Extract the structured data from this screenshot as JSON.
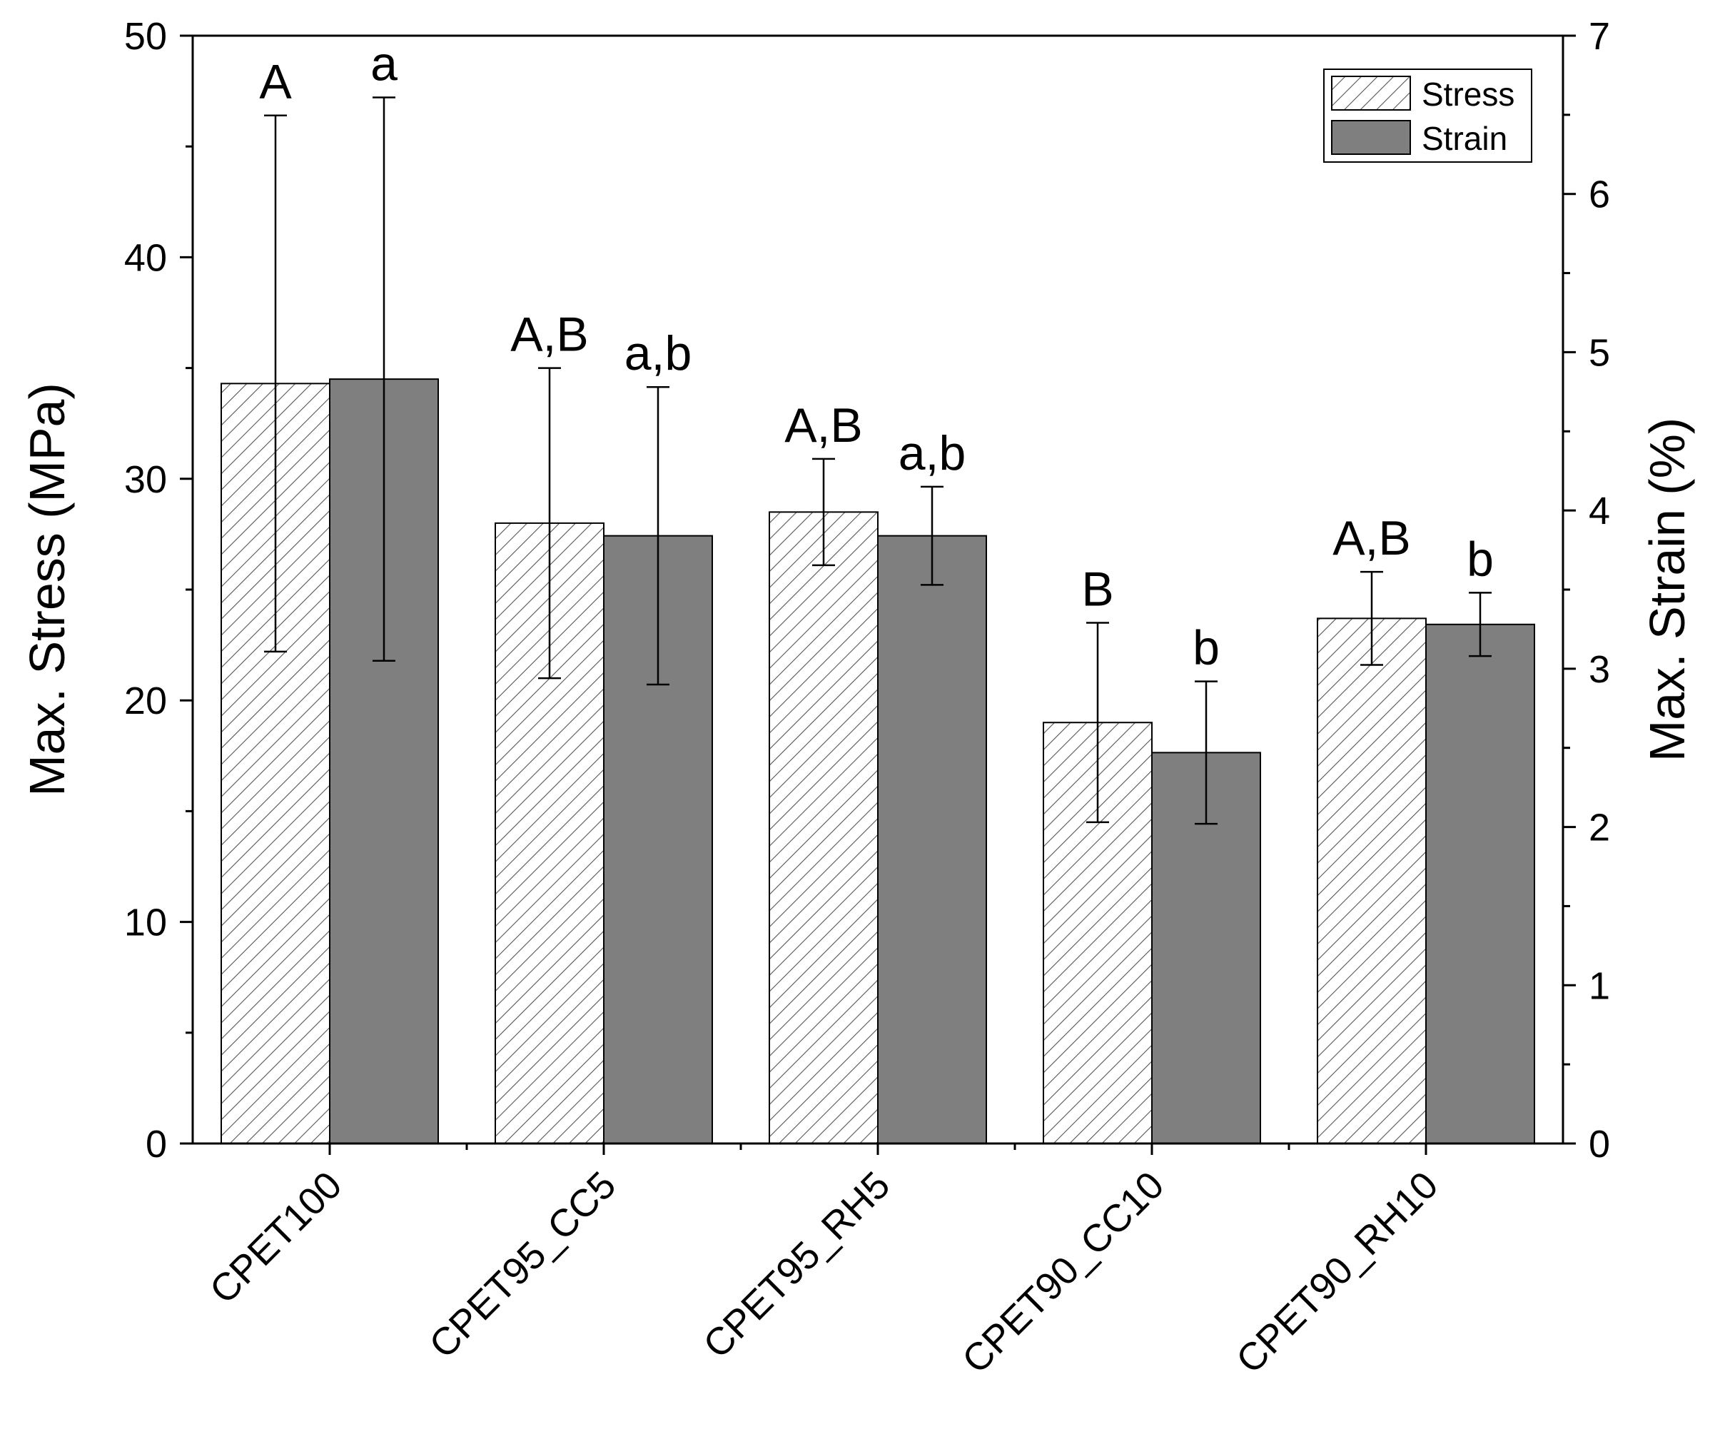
{
  "chart_data": {
    "type": "bar",
    "categories": [
      "CPET100",
      "CPET95_CC5",
      "CPET95_RH5",
      "CPET90_CC10",
      "CPET90_RH10"
    ],
    "series": [
      {
        "name": "Stress",
        "axis": "left",
        "pattern": "hatched",
        "color": "#ffffff",
        "values": [
          34.3,
          28.0,
          28.5,
          19.0,
          23.7
        ],
        "errors": [
          12.1,
          7.0,
          2.4,
          4.5,
          2.1
        ],
        "sig_letters": [
          "A",
          "A,B",
          "A,B",
          "B",
          "A,B"
        ]
      },
      {
        "name": "Strain",
        "axis": "right",
        "pattern": "solid",
        "color": "#7f7f7f",
        "values": [
          4.83,
          3.84,
          3.84,
          2.47,
          3.28
        ],
        "errors": [
          1.78,
          0.94,
          0.31,
          0.45,
          0.2
        ],
        "sig_letters": [
          "a",
          "a,b",
          "a,b",
          "b",
          "b"
        ]
      }
    ],
    "ylabel": "Max. Stress (MPa)",
    "y2label": "Max. Strain (%)",
    "ylim": [
      0,
      50
    ],
    "y2lim": [
      0,
      7
    ],
    "yticks": [
      0,
      10,
      20,
      30,
      40,
      50
    ],
    "y2ticks": [
      0,
      1,
      2,
      3,
      4,
      5,
      6,
      7
    ],
    "legend_position": "top-right",
    "grid": false
  }
}
